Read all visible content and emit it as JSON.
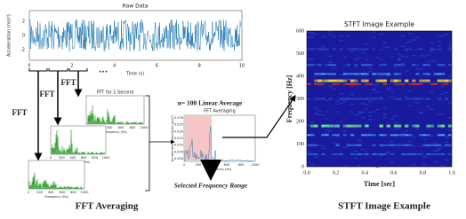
{
  "raw_data": {
    "title": "Raw Data",
    "y_label": "Acceleration (m/s²)",
    "x_label": "Time (s)",
    "x_ticks": [
      "0",
      "2",
      "4",
      "6",
      "8",
      "10"
    ],
    "y_ticks": [
      "2",
      "0",
      "-2"
    ],
    "ellipsis": "..."
  },
  "fft_labels": [
    "FFT",
    "FFT",
    "FFT"
  ],
  "fft_panel": {
    "title": "FFT for 1 Second",
    "x_label": "Frequency (Hz)",
    "x_ticks": [
      "0",
      "200",
      "400",
      "600",
      "800",
      "1000"
    ]
  },
  "averaging": {
    "note": "n= 100 Linear Average",
    "title": "FFT Averaging",
    "y_label": "Acceleration Amplitude (m/s²)",
    "x_label": "Frequency (Hz)",
    "y_ticks": [
      "0.030",
      "0.025",
      "0.020",
      "0.015",
      "0.010",
      "0.005",
      "0.000"
    ],
    "x_ticks": [
      "0",
      "200",
      "400",
      "600",
      "800",
      "1000"
    ],
    "range_label": "Selected Frequency Range"
  },
  "stft": {
    "title": "STFT Image Example",
    "y_label": "Frequency [Hz]",
    "x_label": "Time [sec]",
    "y_ticks": [
      "600",
      "500",
      "400",
      "300",
      "200",
      "100",
      "0"
    ],
    "x_ticks": [
      "0.0",
      "0.2",
      "0.4",
      "0.6",
      "0.8",
      "1.0"
    ]
  },
  "captions": {
    "left": "FFT Averaging",
    "right": "STFT Image Example"
  }
}
